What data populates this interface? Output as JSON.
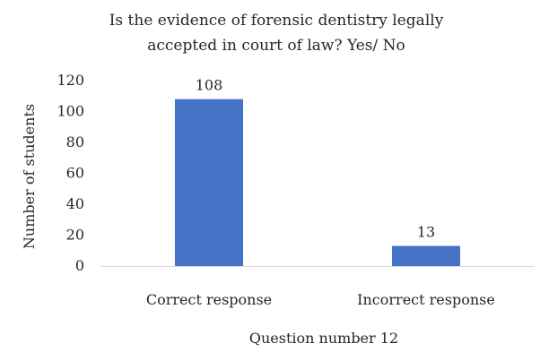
{
  "chart_data": {
    "type": "bar",
    "title_lines": [
      "Is the evidence of forensic dentistry legally",
      "accepted in court of law? Yes/ No"
    ],
    "categories": [
      "Correct response",
      "Incorrect response"
    ],
    "values": [
      108,
      13
    ],
    "data_labels": [
      "108",
      "13"
    ],
    "xlabel": "Question number 12",
    "ylabel": "Number of students",
    "ylim": [
      0,
      120
    ],
    "yticks": [
      0,
      20,
      40,
      60,
      80,
      100,
      120
    ],
    "grid": false,
    "legend": "none",
    "bar_color": "#4472C4",
    "baseline_color": "#D9D9D9"
  }
}
